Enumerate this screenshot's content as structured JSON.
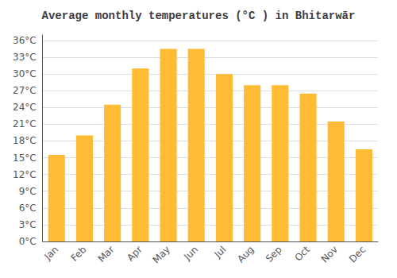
{
  "chart_data": {
    "type": "bar",
    "title": "Average monthly temperatures (°C ) in Bhitarwār",
    "categories": [
      "Jan",
      "Feb",
      "Mar",
      "Apr",
      "May",
      "Jun",
      "Jul",
      "Aug",
      "Sep",
      "Oct",
      "Nov",
      "Dec"
    ],
    "values": [
      15.5,
      19.0,
      24.5,
      31.0,
      34.5,
      34.5,
      30.0,
      28.0,
      28.0,
      26.5,
      21.5,
      16.5
    ],
    "color": "#FFBB33",
    "ylim": [
      0,
      37
    ],
    "yticks": [
      {
        "value": 0,
        "label": "0°C"
      },
      {
        "value": 3,
        "label": "3°C"
      },
      {
        "value": 6,
        "label": "6°C"
      },
      {
        "value": 9,
        "label": "9°C"
      },
      {
        "value": 12,
        "label": "12°C"
      },
      {
        "value": 15,
        "label": "15°C"
      },
      {
        "value": 18,
        "label": "18°C"
      },
      {
        "value": 21,
        "label": "21°C"
      },
      {
        "value": 24,
        "label": "24°C"
      },
      {
        "value": 27,
        "label": "27°C"
      },
      {
        "value": 30,
        "label": "30°C"
      },
      {
        "value": 33,
        "label": "33°C"
      },
      {
        "value": 36,
        "label": "36°C"
      }
    ],
    "grid": true
  }
}
